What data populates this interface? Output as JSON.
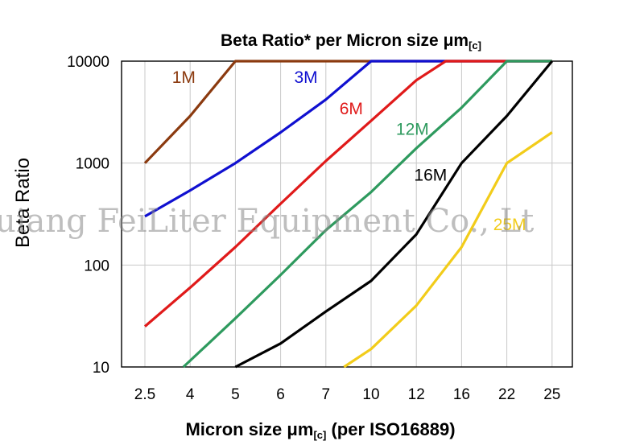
{
  "chart_data": {
    "type": "line",
    "title": "Beta Ratio* per Micron size μm",
    "title_subscript": "[c]",
    "xlabel": "Micron size μm",
    "xlabel_subscript": "[c]",
    "xlabel_suffix": " (per ISO16889)",
    "ylabel": "Beta Ratio",
    "x_scale": "categorical",
    "y_scale": "log",
    "ylim": [
      10,
      10000
    ],
    "grid": true,
    "legend": "inline labels",
    "categories": [
      "2.5",
      "4",
      "5",
      "6",
      "7",
      "10",
      "12",
      "16",
      "22",
      "25"
    ],
    "y_ticks": [
      "10",
      "100",
      "1000",
      "10000"
    ],
    "series": [
      {
        "name": "1M",
        "color": "#8B3A0F",
        "points": [
          [
            0,
            1000
          ],
          [
            1,
            2900
          ],
          [
            2,
            10000
          ],
          [
            9,
            10000
          ]
        ]
      },
      {
        "name": "3M",
        "color": "#1010D0",
        "points": [
          [
            0,
            300
          ],
          [
            1,
            540
          ],
          [
            2,
            1000
          ],
          [
            3,
            2000
          ],
          [
            4,
            4200
          ],
          [
            5,
            10000
          ],
          [
            9,
            10000
          ]
        ]
      },
      {
        "name": "6M",
        "color": "#E01A1A",
        "points": [
          [
            0,
            25
          ],
          [
            1,
            60
          ],
          [
            2,
            150
          ],
          [
            3,
            400
          ],
          [
            4,
            1050
          ],
          [
            5,
            2600
          ],
          [
            6,
            6500
          ],
          [
            6.65,
            10000
          ],
          [
            9,
            10000
          ]
        ]
      },
      {
        "name": "12M",
        "color": "#2E9A5E",
        "points": [
          [
            0.85,
            10
          ],
          [
            2,
            30
          ],
          [
            3,
            80
          ],
          [
            4,
            220
          ],
          [
            5,
            520
          ],
          [
            6,
            1400
          ],
          [
            7,
            3500
          ],
          [
            8,
            10000
          ],
          [
            9,
            10000
          ]
        ]
      },
      {
        "name": "16M",
        "color": "#000000",
        "points": [
          [
            2,
            10
          ],
          [
            3,
            17
          ],
          [
            4,
            35
          ],
          [
            5,
            70
          ],
          [
            6,
            200
          ],
          [
            7,
            1000
          ],
          [
            8,
            2900
          ],
          [
            9,
            10000
          ]
        ]
      },
      {
        "name": "25M",
        "color": "#F2CC1A",
        "points": [
          [
            4.4,
            10
          ],
          [
            5,
            15
          ],
          [
            6,
            40
          ],
          [
            7,
            150
          ],
          [
            8,
            1000
          ],
          [
            9,
            2000
          ]
        ]
      }
    ],
    "labels": [
      {
        "text": "1M",
        "color": "#8B3A0F",
        "x": 0.6,
        "y": 6100
      },
      {
        "text": "3M",
        "color": "#1010D0",
        "x": 3.3,
        "y": 6100
      },
      {
        "text": "6M",
        "color": "#E01A1A",
        "x": 4.3,
        "y": 3000
      },
      {
        "text": "12M",
        "color": "#2E9A5E",
        "x": 5.55,
        "y": 1900
      },
      {
        "text": "16M",
        "color": "#000000",
        "x": 5.95,
        "y": 670
      },
      {
        "text": "25M",
        "color": "#F2CC1A",
        "x": 7.7,
        "y": 220
      }
    ]
  },
  "watermark": "uiang FeiLiter Equipment Co., Lt"
}
